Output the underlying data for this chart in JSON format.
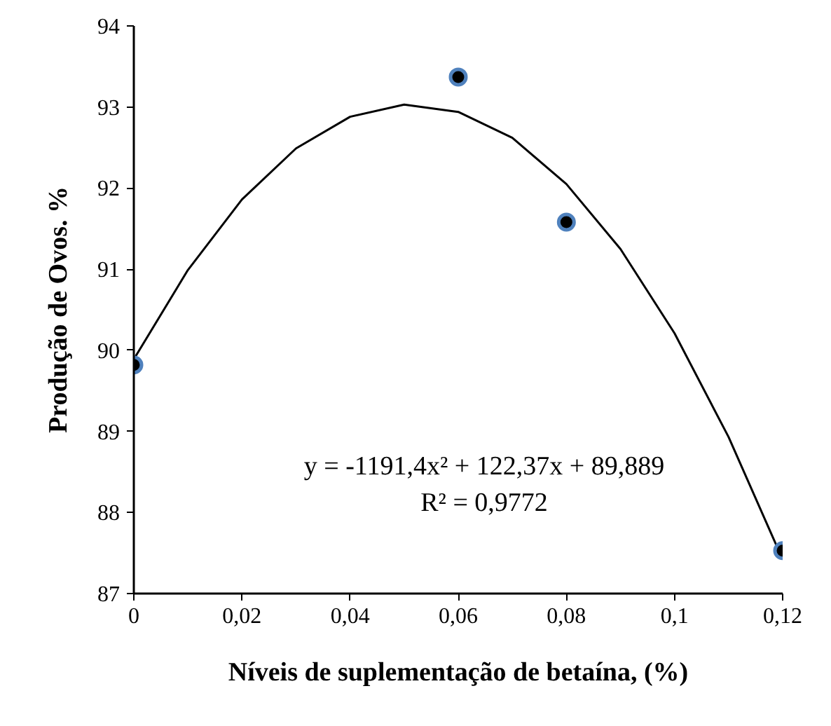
{
  "chart_data": {
    "type": "scatter",
    "xlabel": "Níveis de suplementação de betaína, (%)",
    "ylabel": "Produção de Ovos. %",
    "xlim": [
      0,
      0.12
    ],
    "ylim": [
      87,
      94
    ],
    "xticks": [
      0,
      {
        "value": 0.02,
        "label": "0,02"
      },
      {
        "value": 0.04,
        "label": "0,04"
      },
      {
        "value": 0.06,
        "label": "0,06"
      },
      {
        "value": 0.08,
        "label": "0,08"
      },
      {
        "value": 0.1,
        "label": "0,1"
      },
      {
        "value": 0.12,
        "label": "0,12"
      }
    ],
    "yticks": [
      87,
      88,
      89,
      90,
      91,
      92,
      93,
      94
    ],
    "grid": false,
    "marker": "circle",
    "series": [
      {
        "type": "line",
        "color": "#000000",
        "marker": "none",
        "x": [
          0,
          0.01,
          0.02,
          0.03,
          0.04,
          0.05,
          0.06,
          0.07,
          0.08,
          0.09,
          0.1,
          0.11,
          0.12
        ],
        "values": [
          89.89,
          90.99,
          91.86,
          92.49,
          92.88,
          93.03,
          92.94,
          92.62,
          92.05,
          91.25,
          90.21,
          88.93,
          87.42
        ]
      },
      {
        "color": "#000000",
        "x": [
          0,
          0.06,
          0.08,
          0.12
        ],
        "values": [
          89.82,
          93.37,
          91.58,
          87.53
        ]
      }
    ],
    "annotations": [
      "y = -1191,4x² + 122,37x + 89,889",
      "R² = 0,9772"
    ]
  }
}
